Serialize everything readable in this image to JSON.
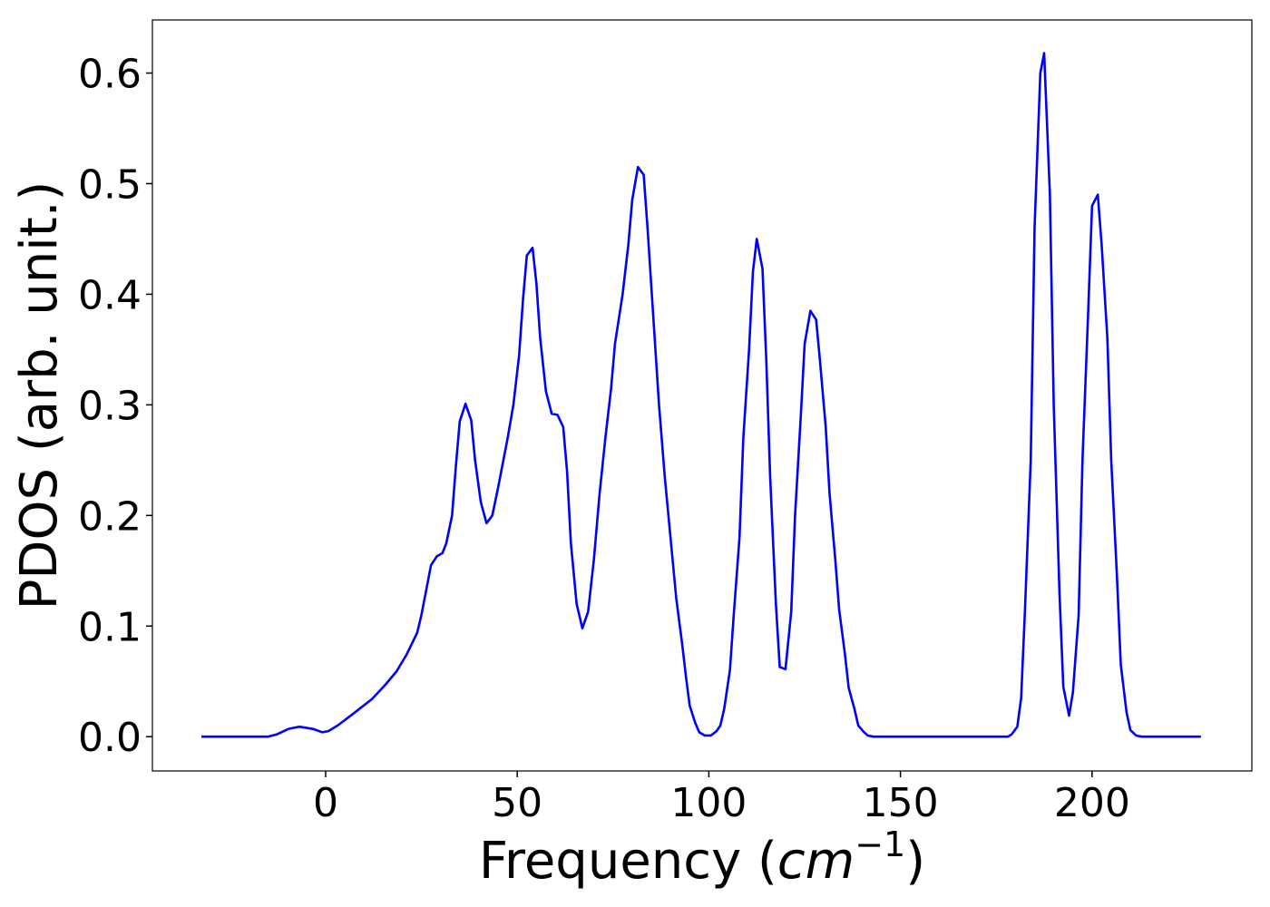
{
  "chart_data": {
    "type": "line",
    "xlabel": [
      "Frequency (",
      "cm",
      "−1",
      ")"
    ],
    "ylabel": "PDOS (arb. unit.)",
    "xlim": [
      -45.2,
      241.7
    ],
    "ylim": [
      -0.031,
      0.648
    ],
    "xticks": [
      0,
      50,
      100,
      150,
      200
    ],
    "yticks": [
      {
        "value": 0,
        "label": "0.0"
      },
      {
        "value": 0.1,
        "label": "0.1"
      },
      {
        "value": 0.2,
        "label": "0.2"
      },
      {
        "value": 0.3,
        "label": "0.3"
      },
      {
        "value": 0.4,
        "label": "0.4"
      },
      {
        "value": 0.5,
        "label": "0.5"
      },
      {
        "value": 0.6,
        "label": "0.6"
      }
    ],
    "grid": false,
    "series": [
      {
        "color": "#0000ff",
        "x": [
          -32.4,
          -15.1,
          -12.8,
          -9.7,
          -6.9,
          -3.3,
          -0.9,
          0.7,
          3.1,
          7.3,
          12.1,
          15.6,
          18.5,
          21.1,
          23.9,
          25,
          27.5,
          29,
          30.5,
          31.5,
          33,
          34,
          35,
          36.5,
          38,
          39,
          40.5,
          42,
          43.5,
          45,
          47.5,
          49,
          50.5,
          51.5,
          52.5,
          54,
          55,
          56,
          57.5,
          59,
          60.5,
          62,
          63,
          64,
          65.5,
          67,
          68.5,
          70,
          71.5,
          73,
          74.5,
          75.5,
          77.5,
          79,
          80,
          81.5,
          83,
          84,
          85.5,
          87,
          88.5,
          90,
          91.5,
          93,
          94,
          95,
          96.5,
          97.5,
          99,
          100.5,
          102,
          103,
          104,
          105.5,
          106.5,
          108,
          109,
          110.5,
          111.5,
          112.5,
          114,
          115,
          116,
          117.5,
          118.5,
          120,
          121.5,
          122.5,
          124,
          125,
          126.5,
          128,
          129,
          130.5,
          131.5,
          133,
          134,
          135.5,
          136.5,
          138,
          139,
          140.5,
          141.5,
          143,
          178,
          179,
          180.5,
          181.5,
          182.5,
          184,
          185,
          186.5,
          187.5,
          189,
          190,
          191.5,
          192.5,
          194,
          195,
          196.5,
          197.5,
          199,
          200,
          201.5,
          202.5,
          204,
          205,
          206.5,
          207.5,
          209,
          210,
          211.5,
          213,
          228.4
        ],
        "values": [
          0,
          0,
          0.002,
          0.007,
          0.009,
          0.007,
          0.004,
          0.005,
          0.01,
          0.021,
          0.034,
          0.047,
          0.059,
          0.074,
          0.094,
          0.11,
          0.155,
          0.163,
          0.166,
          0.175,
          0.2,
          0.245,
          0.285,
          0.301,
          0.286,
          0.25,
          0.212,
          0.193,
          0.2,
          0.225,
          0.27,
          0.3,
          0.345,
          0.395,
          0.435,
          0.442,
          0.41,
          0.36,
          0.312,
          0.292,
          0.291,
          0.28,
          0.24,
          0.175,
          0.12,
          0.098,
          0.113,
          0.16,
          0.22,
          0.27,
          0.315,
          0.355,
          0.4,
          0.445,
          0.485,
          0.515,
          0.508,
          0.46,
          0.38,
          0.3,
          0.235,
          0.18,
          0.125,
          0.085,
          0.055,
          0.028,
          0.012,
          0.004,
          0.001,
          0.001,
          0.005,
          0.01,
          0.025,
          0.06,
          0.11,
          0.18,
          0.27,
          0.35,
          0.42,
          0.45,
          0.423,
          0.34,
          0.235,
          0.12,
          0.063,
          0.061,
          0.113,
          0.2,
          0.29,
          0.355,
          0.385,
          0.377,
          0.34,
          0.28,
          0.22,
          0.16,
          0.115,
          0.075,
          0.044,
          0.025,
          0.01,
          0.004,
          0.001,
          0,
          0,
          0.002,
          0.009,
          0.035,
          0.115,
          0.25,
          0.46,
          0.6,
          0.618,
          0.49,
          0.3,
          0.13,
          0.045,
          0.019,
          0.04,
          0.11,
          0.25,
          0.385,
          0.48,
          0.49,
          0.445,
          0.36,
          0.25,
          0.145,
          0.065,
          0.022,
          0.006,
          0.001,
          0,
          0
        ]
      }
    ]
  }
}
